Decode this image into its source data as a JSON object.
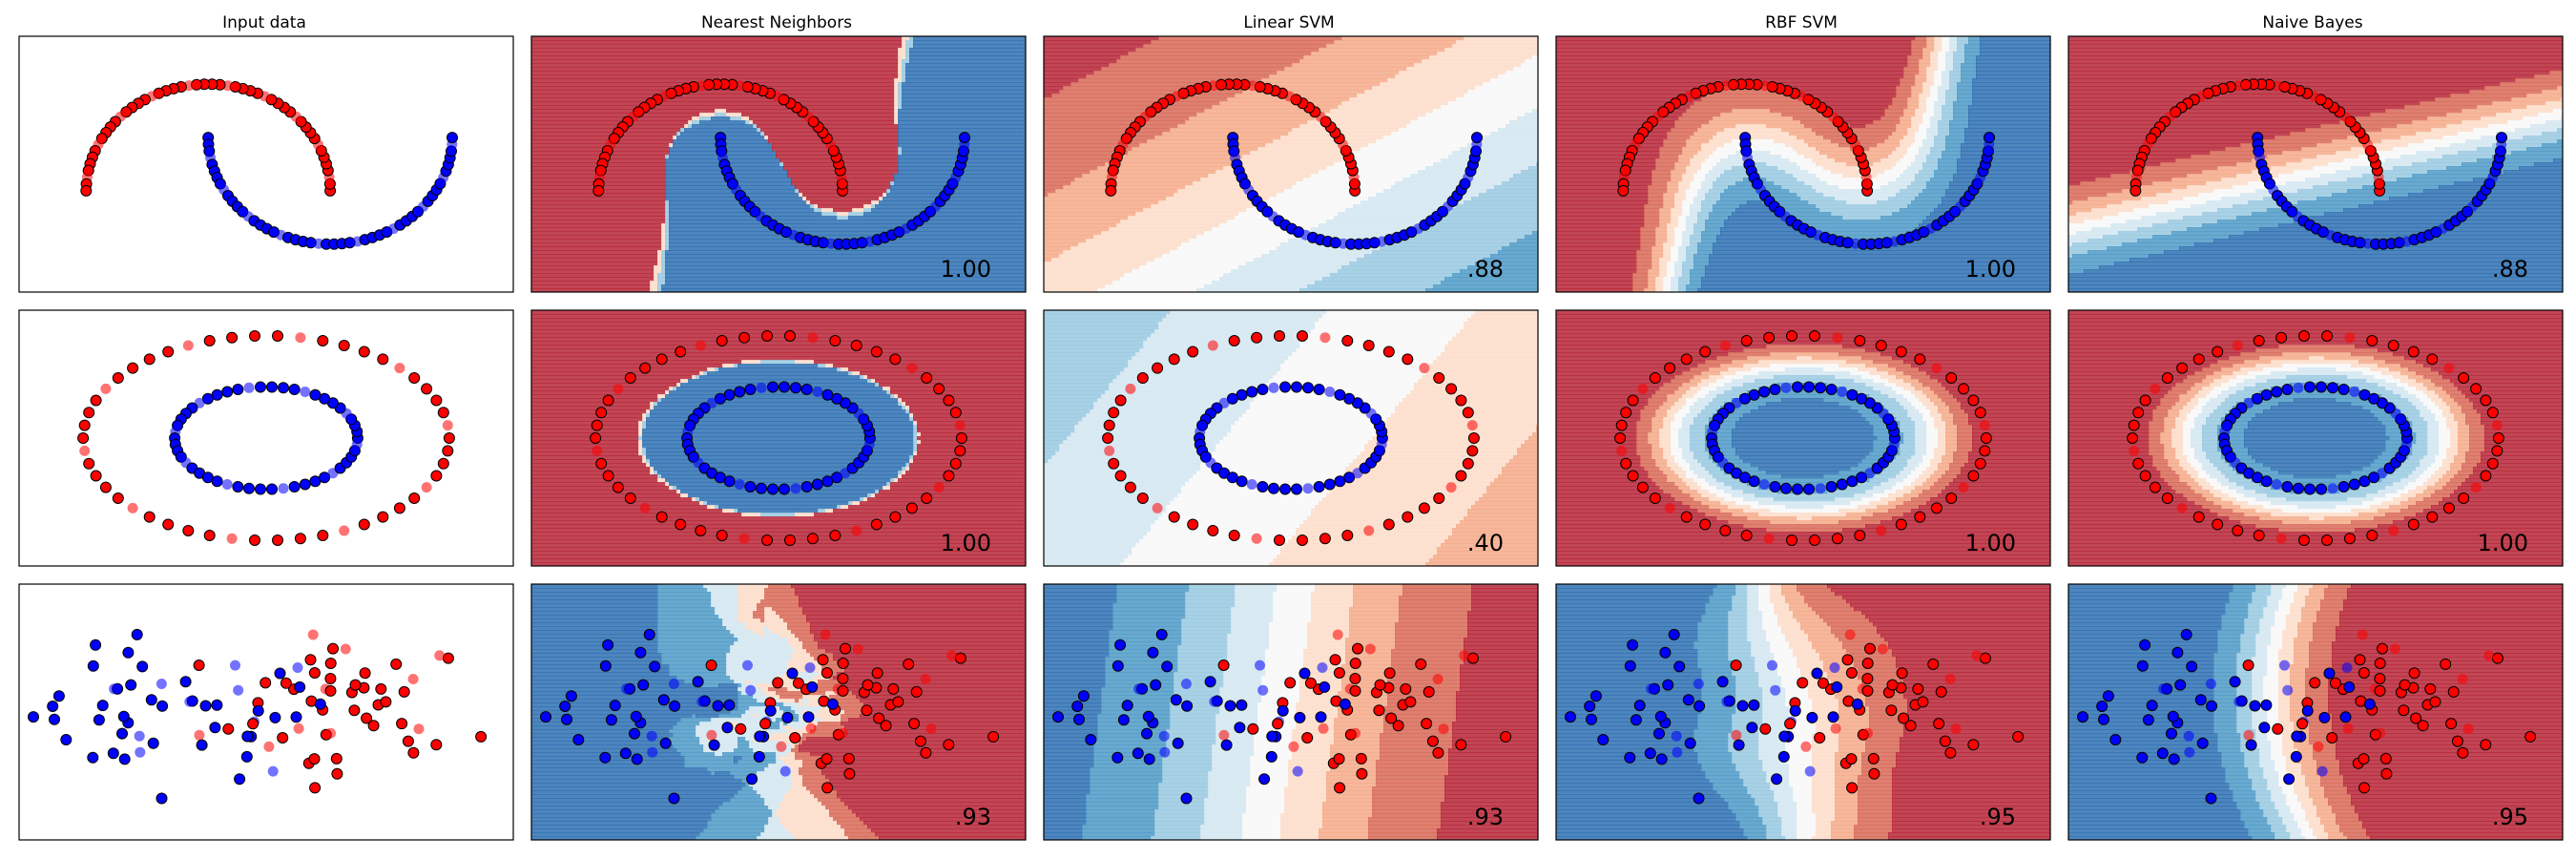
{
  "columns": [
    {
      "title": "Input data"
    },
    {
      "title": "Nearest Neighbors"
    },
    {
      "title": "Linear SVM"
    },
    {
      "title": "RBF SVM"
    },
    {
      "title": "Naive Bayes"
    }
  ],
  "colors": {
    "class0": "#ff0000",
    "class1": "#0000ff",
    "rdbu": [
      "#b2182b",
      "#d6604d",
      "#f4a582",
      "#fddbc7",
      "#f7f7f7",
      "#d1e5f0",
      "#92c5de",
      "#4393c3",
      "#2166ac"
    ]
  },
  "chart_data": {
    "type": "scatter",
    "grid": false,
    "datasets": [
      {
        "name": "moons",
        "xlim": [
          -1.55,
          2.5
        ],
        "ylim": [
          -0.95,
          1.45
        ]
      },
      {
        "name": "circles",
        "xlim": [
          -1.35,
          1.35
        ],
        "ylim": [
          -1.25,
          1.25
        ]
      },
      {
        "name": "linearly separable",
        "xlim": [
          -2.2,
          3.3
        ],
        "ylim": [
          -3.0,
          2.2
        ]
      }
    ],
    "scores": [
      [
        "1.00",
        ".88",
        "1.00",
        ".88"
      ],
      [
        "1.00",
        ".40",
        "1.00",
        "1.00"
      ],
      [
        ".93",
        ".93",
        ".95",
        ".95"
      ]
    ]
  }
}
